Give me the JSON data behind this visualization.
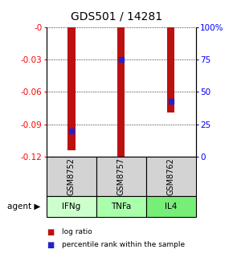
{
  "title": "GDS501 / 14281",
  "samples": [
    "GSM8752",
    "GSM8757",
    "GSM8762"
  ],
  "agents": [
    "IFNg",
    "TNFa",
    "IL4"
  ],
  "log_ratios": [
    -0.114,
    -0.1205,
    -0.079
  ],
  "percentile_ranks": [
    20.0,
    75.0,
    43.0
  ],
  "ylim_left": [
    -0.12,
    0.0
  ],
  "yticks_left": [
    0.0,
    -0.03,
    -0.06,
    -0.09,
    -0.12
  ],
  "ytick_labels_left": [
    "-0",
    "-0.03",
    "-0.06",
    "-0.09",
    "-0.12"
  ],
  "ylim_right": [
    0,
    100
  ],
  "yticks_right": [
    0,
    25,
    50,
    75,
    100
  ],
  "ytick_labels_right": [
    "0",
    "25",
    "50",
    "75",
    "100%"
  ],
  "bar_color": "#bb1111",
  "dot_color": "#2222cc",
  "agent_colors": [
    "#ccffcc",
    "#aaffaa",
    "#77ee77"
  ],
  "sample_box_color": "#d3d3d3",
  "legend_log_ratio": "log ratio",
  "legend_percentile": "percentile rank within the sample",
  "background_color": "#ffffff",
  "title_fontsize": 10,
  "tick_fontsize": 7.5,
  "bar_width": 0.15
}
